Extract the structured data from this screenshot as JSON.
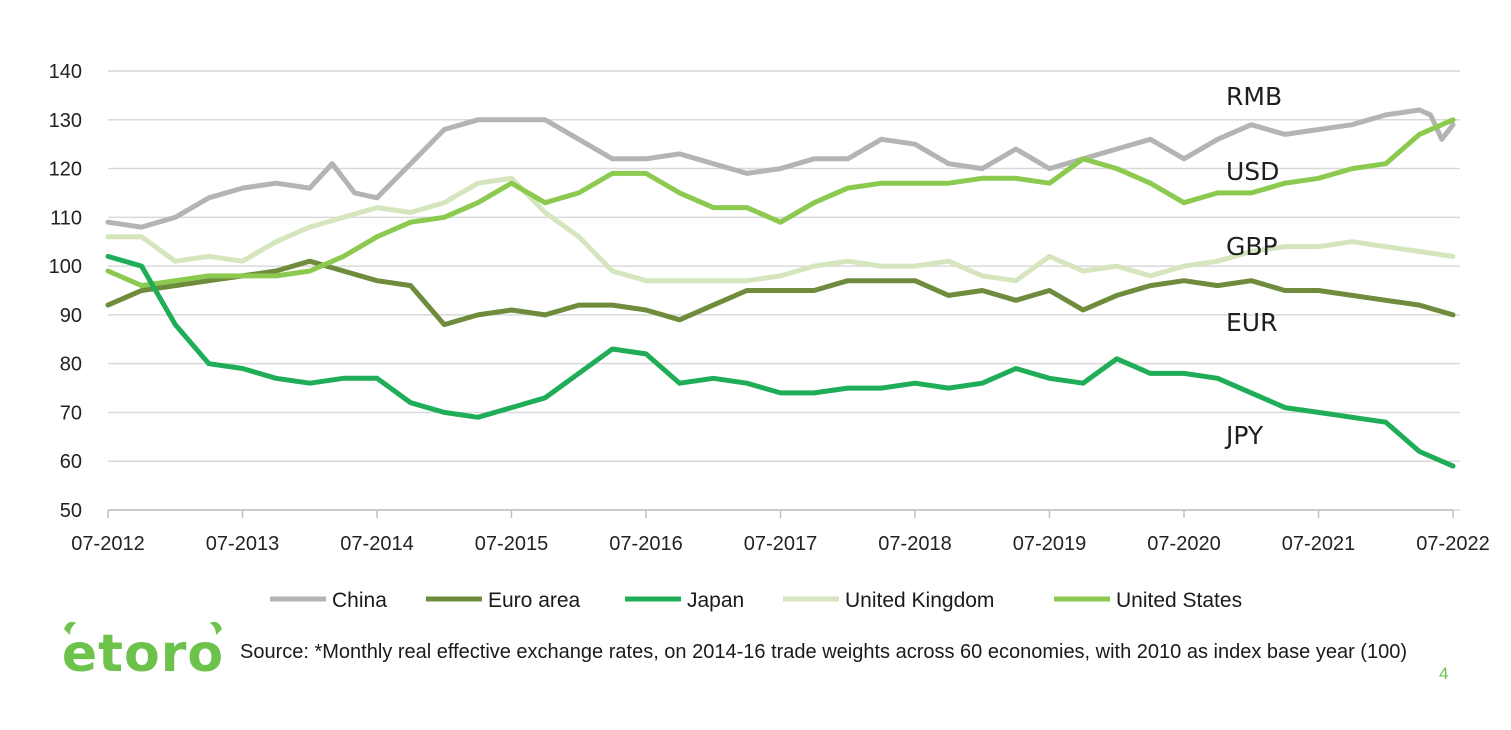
{
  "chart_data": {
    "type": "line",
    "ylim": [
      50,
      140
    ],
    "yticks": [
      50,
      60,
      70,
      80,
      90,
      100,
      110,
      120,
      130,
      140
    ],
    "xticks": [
      "07-2012",
      "07-2013",
      "07-2014",
      "07-2015",
      "07-2016",
      "07-2017",
      "07-2018",
      "07-2019",
      "07-2020",
      "07-2021",
      "07-2022"
    ],
    "grid": "horizontal",
    "legend_position": "bottom",
    "series": [
      {
        "name": "China",
        "color": "#b4b4b4",
        "x": [
          "07-2012",
          "10-2012",
          "01-2013",
          "04-2013",
          "07-2013",
          "10-2013",
          "01-2014",
          "03-2014",
          "05-2014",
          "07-2014",
          "10-2014",
          "01-2015",
          "04-2015",
          "07-2015",
          "10-2015",
          "01-2016",
          "04-2016",
          "07-2016",
          "10-2016",
          "01-2017",
          "04-2017",
          "07-2017",
          "10-2017",
          "01-2018",
          "04-2018",
          "07-2018",
          "10-2018",
          "01-2019",
          "04-2019",
          "07-2019",
          "10-2019",
          "01-2020",
          "04-2020",
          "07-2020",
          "10-2020",
          "01-2021",
          "04-2021",
          "07-2021",
          "10-2021",
          "01-2022",
          "04-2022",
          "05-2022",
          "06-2022",
          "07-2022"
        ],
        "values": [
          109,
          108,
          110,
          114,
          116,
          117,
          116,
          121,
          115,
          114,
          121,
          128,
          130,
          130,
          130,
          126,
          122,
          122,
          123,
          121,
          119,
          120,
          122,
          122,
          126,
          125,
          121,
          120,
          124,
          120,
          122,
          124,
          126,
          122,
          126,
          129,
          127,
          128,
          129,
          131,
          132,
          131,
          126,
          129
        ]
      },
      {
        "name": "Euro area",
        "color": "#6e8c3c",
        "x": [
          "07-2012",
          "10-2012",
          "01-2013",
          "04-2013",
          "07-2013",
          "10-2013",
          "01-2014",
          "04-2014",
          "07-2014",
          "10-2014",
          "01-2015",
          "04-2015",
          "07-2015",
          "10-2015",
          "01-2016",
          "04-2016",
          "07-2016",
          "10-2016",
          "01-2017",
          "04-2017",
          "07-2017",
          "10-2017",
          "01-2018",
          "04-2018",
          "07-2018",
          "10-2018",
          "01-2019",
          "04-2019",
          "07-2019",
          "10-2019",
          "01-2020",
          "04-2020",
          "07-2020",
          "10-2020",
          "01-2021",
          "04-2021",
          "07-2021",
          "10-2021",
          "01-2022",
          "04-2022",
          "07-2022"
        ],
        "values": [
          92,
          95,
          96,
          97,
          98,
          99,
          101,
          99,
          97,
          96,
          88,
          90,
          91,
          90,
          92,
          92,
          91,
          89,
          92,
          95,
          95,
          95,
          97,
          97,
          97,
          94,
          95,
          93,
          95,
          91,
          94,
          96,
          97,
          96,
          97,
          95,
          95,
          94,
          93,
          92,
          90
        ]
      },
      {
        "name": "Japan",
        "color": "#1fae57",
        "x": [
          "07-2012",
          "10-2012",
          "01-2013",
          "04-2013",
          "07-2013",
          "10-2013",
          "01-2014",
          "04-2014",
          "07-2014",
          "10-2014",
          "01-2015",
          "04-2015",
          "07-2015",
          "10-2015",
          "01-2016",
          "04-2016",
          "07-2016",
          "10-2016",
          "01-2017",
          "04-2017",
          "07-2017",
          "10-2017",
          "01-2018",
          "04-2018",
          "07-2018",
          "10-2018",
          "01-2019",
          "04-2019",
          "07-2019",
          "10-2019",
          "01-2020",
          "04-2020",
          "07-2020",
          "10-2020",
          "01-2021",
          "04-2021",
          "07-2021",
          "10-2021",
          "01-2022",
          "04-2022",
          "07-2022"
        ],
        "values": [
          102,
          100,
          88,
          80,
          79,
          77,
          76,
          77,
          77,
          72,
          70,
          69,
          71,
          73,
          78,
          83,
          82,
          76,
          77,
          76,
          74,
          74,
          75,
          75,
          76,
          75,
          76,
          79,
          77,
          76,
          81,
          78,
          78,
          77,
          74,
          71,
          70,
          69,
          68,
          62,
          59
        ]
      },
      {
        "name": "United Kingdom",
        "color": "#d5e6bf",
        "x": [
          "07-2012",
          "10-2012",
          "01-2013",
          "04-2013",
          "07-2013",
          "10-2013",
          "01-2014",
          "04-2014",
          "07-2014",
          "10-2014",
          "01-2015",
          "04-2015",
          "07-2015",
          "10-2015",
          "01-2016",
          "04-2016",
          "07-2016",
          "10-2016",
          "01-2017",
          "04-2017",
          "07-2017",
          "10-2017",
          "01-2018",
          "04-2018",
          "07-2018",
          "10-2018",
          "01-2019",
          "04-2019",
          "07-2019",
          "10-2019",
          "01-2020",
          "04-2020",
          "07-2020",
          "10-2020",
          "01-2021",
          "04-2021",
          "07-2021",
          "10-2021",
          "01-2022",
          "04-2022",
          "07-2022"
        ],
        "values": [
          106,
          106,
          101,
          102,
          101,
          105,
          108,
          110,
          112,
          111,
          113,
          117,
          118,
          111,
          106,
          99,
          97,
          97,
          97,
          97,
          98,
          100,
          101,
          100,
          100,
          101,
          98,
          97,
          102,
          99,
          100,
          98,
          100,
          101,
          103,
          104,
          104,
          105,
          104,
          103,
          102
        ]
      },
      {
        "name": "United States",
        "color": "#8cc94f",
        "x": [
          "07-2012",
          "10-2012",
          "01-2013",
          "04-2013",
          "07-2013",
          "10-2013",
          "01-2014",
          "04-2014",
          "07-2014",
          "10-2014",
          "01-2015",
          "04-2015",
          "07-2015",
          "10-2015",
          "01-2016",
          "04-2016",
          "07-2016",
          "10-2016",
          "01-2017",
          "04-2017",
          "07-2017",
          "10-2017",
          "01-2018",
          "04-2018",
          "07-2018",
          "10-2018",
          "01-2019",
          "04-2019",
          "07-2019",
          "10-2019",
          "01-2020",
          "04-2020",
          "07-2020",
          "10-2020",
          "01-2021",
          "04-2021",
          "07-2021",
          "10-2021",
          "01-2022",
          "04-2022",
          "07-2022"
        ],
        "values": [
          99,
          96,
          97,
          98,
          98,
          98,
          99,
          102,
          106,
          109,
          110,
          113,
          117,
          113,
          115,
          119,
          119,
          115,
          112,
          112,
          109,
          113,
          116,
          117,
          117,
          117,
          118,
          118,
          117,
          122,
          120,
          117,
          113,
          115,
          115,
          117,
          118,
          120,
          121,
          127,
          130
        ]
      }
    ],
    "annotations": [
      {
        "text": "RMB",
        "series": "China"
      },
      {
        "text": "USD",
        "series": "United States"
      },
      {
        "text": "GBP",
        "series": "United Kingdom"
      },
      {
        "text": "EUR",
        "series": "Euro area"
      },
      {
        "text": "JPY",
        "series": "Japan"
      }
    ]
  },
  "footer": {
    "logo_text": "etoro",
    "source": "Source: *Monthly real effective exchange rates, on 2014-16 trade weights across 60 economies, with 2010 as index base year (100)",
    "page_number": "4"
  },
  "colors": {
    "brand_green": "#6cc24a"
  }
}
